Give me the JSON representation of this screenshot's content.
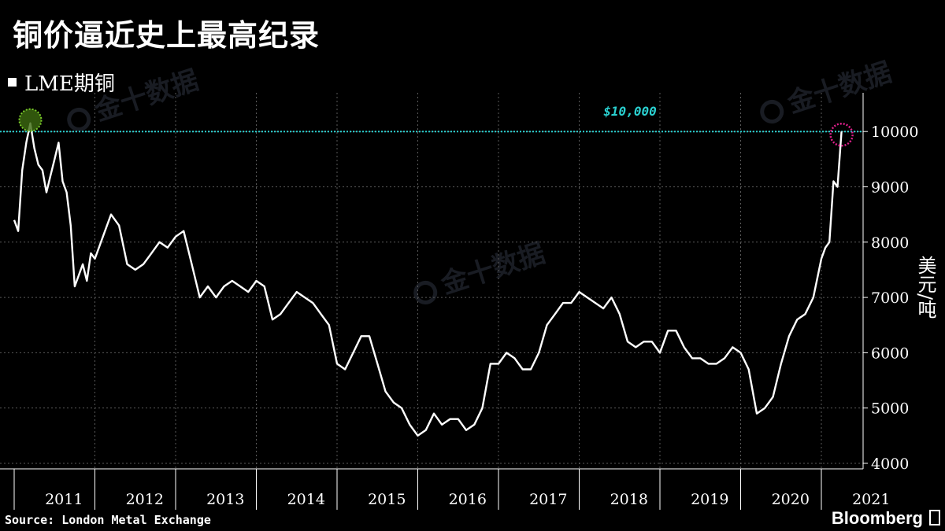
{
  "header": {
    "title": "铜价逼近史上最高纪录"
  },
  "legend": {
    "label": "LME期铜"
  },
  "footer": {
    "source": "Source: London Metal Exchange",
    "brand": "Bloomberg"
  },
  "watermark": {
    "text": "金十数据"
  },
  "colors": {
    "line": "#ffffff",
    "reference": "#2ad0d0",
    "high_marker": "#7acc2a",
    "current_marker": "#e0208c"
  },
  "chart_data": {
    "type": "line",
    "title": "铜价逼近史上最高纪录",
    "ylabel": "美元/吨",
    "ylim": [
      3900,
      10700
    ],
    "yticks": [
      4000,
      5000,
      6000,
      7000,
      8000,
      9000,
      10000
    ],
    "x_year_labels": [
      "2011",
      "2012",
      "2013",
      "2014",
      "2015",
      "2016",
      "2017",
      "2018",
      "2019",
      "2020",
      "2021"
    ],
    "xlim": [
      2011.0,
      2021.25
    ],
    "reference_line": {
      "value": 10000,
      "label": "$10,000"
    },
    "series": [
      {
        "name": "LME期铜",
        "x": [
          2011.0,
          2011.05,
          2011.1,
          2011.15,
          2011.2,
          2011.25,
          2011.3,
          2011.35,
          2011.4,
          2011.45,
          2011.5,
          2011.55,
          2011.6,
          2011.65,
          2011.7,
          2011.75,
          2011.8,
          2011.85,
          2011.9,
          2011.95,
          2012.0,
          2012.1,
          2012.2,
          2012.3,
          2012.4,
          2012.5,
          2012.6,
          2012.7,
          2012.8,
          2012.9,
          2013.0,
          2013.1,
          2013.2,
          2013.3,
          2013.4,
          2013.5,
          2013.6,
          2013.7,
          2013.8,
          2013.9,
          2014.0,
          2014.1,
          2014.2,
          2014.3,
          2014.4,
          2014.5,
          2014.6,
          2014.7,
          2014.8,
          2014.9,
          2015.0,
          2015.1,
          2015.2,
          2015.3,
          2015.4,
          2015.5,
          2015.6,
          2015.7,
          2015.8,
          2015.9,
          2016.0,
          2016.1,
          2016.2,
          2016.3,
          2016.4,
          2016.5,
          2016.6,
          2016.7,
          2016.8,
          2016.9,
          2017.0,
          2017.1,
          2017.2,
          2017.3,
          2017.4,
          2017.5,
          2017.6,
          2017.7,
          2017.8,
          2017.9,
          2018.0,
          2018.1,
          2018.2,
          2018.3,
          2018.4,
          2018.5,
          2018.6,
          2018.7,
          2018.8,
          2018.9,
          2019.0,
          2019.1,
          2019.2,
          2019.3,
          2019.4,
          2019.5,
          2019.6,
          2019.7,
          2019.8,
          2019.9,
          2020.0,
          2020.1,
          2020.2,
          2020.3,
          2020.4,
          2020.5,
          2020.6,
          2020.7,
          2020.8,
          2020.9,
          2021.0,
          2021.05,
          2021.1,
          2021.15,
          2021.2,
          2021.25
        ],
        "y": [
          8400,
          8200,
          9300,
          9800,
          10150,
          9700,
          9400,
          9300,
          8900,
          9200,
          9500,
          9800,
          9100,
          8900,
          8300,
          7200,
          7400,
          7600,
          7300,
          7800,
          7700,
          8100,
          8500,
          8300,
          7600,
          7500,
          7600,
          7800,
          8000,
          7900,
          8100,
          8200,
          7600,
          7000,
          7200,
          7000,
          7200,
          7300,
          7200,
          7100,
          7300,
          7200,
          6600,
          6700,
          6900,
          7100,
          7000,
          6900,
          6700,
          6500,
          5800,
          5700,
          6000,
          6300,
          6300,
          5800,
          5300,
          5100,
          5000,
          4700,
          4500,
          4600,
          4900,
          4700,
          4800,
          4800,
          4600,
          4700,
          5000,
          5800,
          5800,
          6000,
          5900,
          5700,
          5700,
          6000,
          6500,
          6700,
          6900,
          6900,
          7100,
          7000,
          6900,
          6800,
          7000,
          6700,
          6200,
          6100,
          6200,
          6200,
          6000,
          6400,
          6400,
          6100,
          5900,
          5900,
          5800,
          5800,
          5900,
          6100,
          6000,
          5700,
          4900,
          5000,
          5200,
          5800,
          6300,
          6600,
          6700,
          7000,
          7700,
          7900,
          8000,
          9100,
          9000,
          10000
        ]
      }
    ]
  }
}
